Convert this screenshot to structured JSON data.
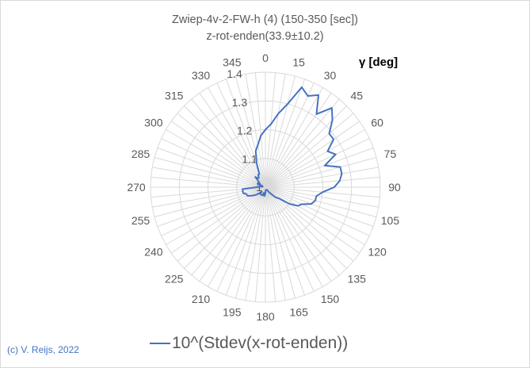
{
  "title_line1": "Zwiep-4v-2-FW-h (4) (150-350 [sec])",
  "title_line2": "z-rot-enden(33.9±10.2)",
  "axis_label": "γ [deg]",
  "credit": "(c) V. Reijs, 2022",
  "legend_label": "10^(Stdev(x-rot-enden))",
  "colors": {
    "series": "#4472c4",
    "grid": "#d9d9d9",
    "text": "#595959"
  },
  "chart_data": {
    "type": "radar",
    "title": "Zwiep-4v-2-FW-h (4) (150-350 [sec]) z-rot-enden(33.9±10.2)",
    "angle_label": "γ [deg]",
    "angle_ticks": [
      0,
      15,
      30,
      45,
      60,
      75,
      90,
      105,
      120,
      135,
      150,
      165,
      180,
      195,
      210,
      225,
      240,
      255,
      270,
      285,
      300,
      315,
      330,
      345
    ],
    "radial_ticks": [
      1,
      1.1,
      1.2,
      1.3,
      1.4
    ],
    "rlim": [
      1,
      1.4
    ],
    "series": [
      {
        "name": "10^(Stdev(x-rot-enden))",
        "angles": [
          0,
          5,
          10,
          15,
          20,
          25,
          30,
          35,
          40,
          45,
          50,
          55,
          60,
          65,
          70,
          75,
          80,
          85,
          90,
          95,
          100,
          105,
          110,
          115,
          120,
          125,
          130,
          135,
          140,
          145,
          150,
          155,
          160,
          165,
          170,
          175,
          180,
          185,
          190,
          195,
          200,
          205,
          210,
          215,
          220,
          225,
          230,
          235,
          240,
          245,
          250,
          255,
          260,
          265,
          270,
          275,
          280,
          285,
          290,
          295,
          300,
          305,
          310,
          315,
          320,
          325,
          330,
          335,
          340,
          345,
          350,
          355
        ],
        "values": [
          1.2,
          1.22,
          1.26,
          1.3,
          1.37,
          1.35,
          1.37,
          1.31,
          1.36,
          1.33,
          1.29,
          1.29,
          1.25,
          1.27,
          1.22,
          1.27,
          1.27,
          1.26,
          1.24,
          1.2,
          1.18,
          1.18,
          1.17,
          1.14,
          1.13,
          1.1,
          1.06,
          1.05,
          1.03,
          1.02,
          1.01,
          1.01,
          1.01,
          1.01,
          1.01,
          1.01,
          1.02,
          1.03,
          1.03,
          1.02,
          1.03,
          1.03,
          1.03,
          1.03,
          1.02,
          1.03,
          1.04,
          1.05,
          1.06,
          1.07,
          1.07,
          1.08,
          1.08,
          1.08,
          1.03,
          1.02,
          1.01,
          1.01,
          1.01,
          1.03,
          1.02,
          1.03,
          1.03,
          1.05,
          1.04,
          1.04,
          1.05,
          1.05,
          1.09,
          1.13,
          1.15,
          1.18
        ]
      }
    ]
  }
}
